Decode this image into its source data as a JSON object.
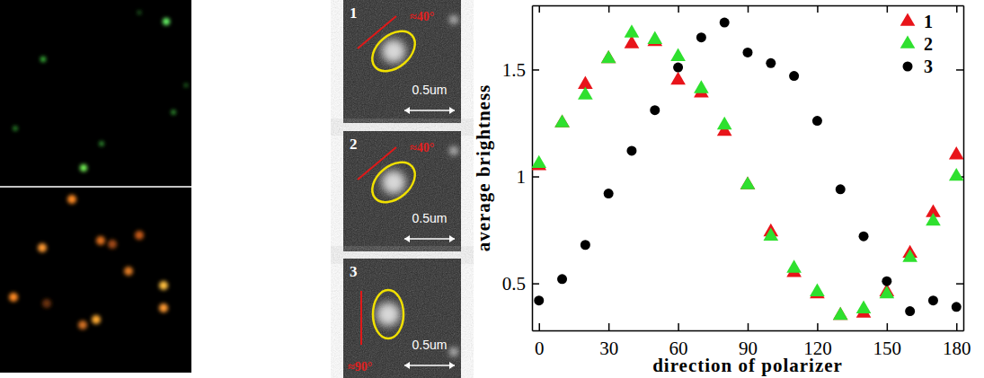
{
  "chart_data": {
    "type": "scatter",
    "x": [
      0,
      10,
      20,
      30,
      40,
      50,
      60,
      70,
      80,
      90,
      100,
      110,
      120,
      130,
      140,
      150,
      160,
      170,
      180
    ],
    "series": [
      {
        "name": "1",
        "color": "#e8141a",
        "marker": "triangle",
        "values": [
          1.05,
          1.25,
          1.43,
          1.55,
          1.62,
          1.63,
          1.45,
          1.39,
          1.21,
          0.96,
          0.74,
          0.55,
          0.45,
          0.35,
          0.36,
          0.46,
          0.64,
          0.83,
          1.1
        ]
      },
      {
        "name": "2",
        "color": "#2ee02e",
        "marker": "triangle",
        "values": [
          1.06,
          1.25,
          1.38,
          1.55,
          1.67,
          1.64,
          1.56,
          1.41,
          1.24,
          0.96,
          0.72,
          0.57,
          0.46,
          0.35,
          0.38,
          0.45,
          0.62,
          0.79,
          1.0
        ]
      },
      {
        "name": "3",
        "color": "#000000",
        "marker": "circle",
        "values": [
          0.42,
          0.52,
          0.68,
          0.92,
          1.12,
          1.31,
          1.51,
          1.65,
          1.72,
          1.58,
          1.53,
          1.47,
          1.26,
          0.94,
          0.72,
          0.51,
          0.37,
          0.42,
          0.39
        ]
      }
    ],
    "xlabel": "direction of polarizer",
    "ylabel": "average brightness",
    "xlim": [
      -3,
      183
    ],
    "ylim": [
      0.28,
      1.8
    ],
    "xticks": [
      0,
      30,
      60,
      90,
      120,
      150,
      180
    ],
    "yticks": [
      0.5,
      1,
      1.5
    ],
    "legend": "top-right"
  },
  "insets": [
    {
      "label": "1",
      "angle": 40,
      "angle_label": "≈40°",
      "scale_label": "0.5um"
    },
    {
      "label": "2",
      "angle": 40,
      "angle_label": "≈40°",
      "scale_label": "0.5um"
    },
    {
      "label": "3",
      "angle": 90,
      "angle_label": "≈90°",
      "scale_label": "0.5um"
    }
  ]
}
